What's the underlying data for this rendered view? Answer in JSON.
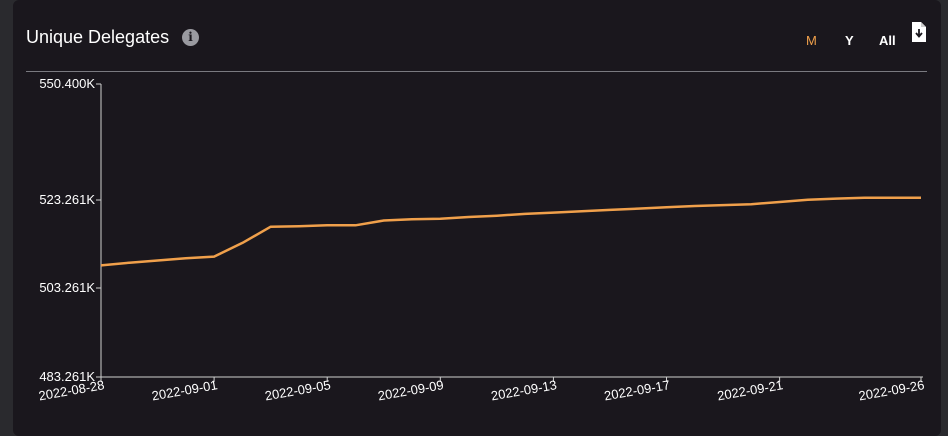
{
  "header": {
    "title": "Unique Delegates",
    "info_icon": "info-icon",
    "download_icon": "download-file-icon"
  },
  "range_buttons": [
    {
      "label": "M",
      "active": true
    },
    {
      "label": "Y",
      "active": false
    },
    {
      "label": "All",
      "active": false
    }
  ],
  "colors": {
    "series": "#f0a04b",
    "active_button": "#f0a04b",
    "background": "#1a171d"
  },
  "chart_data": {
    "type": "line",
    "title": "Unique Delegates",
    "xlabel": "",
    "ylabel": "",
    "grid": false,
    "y_ticks": [
      "550.400K",
      "523.261K",
      "503.261K",
      "483.261K"
    ],
    "y_tick_values": [
      550400,
      523261,
      503261,
      483261
    ],
    "ylim": [
      483261,
      550400
    ],
    "x_ticks": [
      "2022-08-28",
      "2022-09-01",
      "2022-09-05",
      "2022-09-09",
      "2022-09-13",
      "2022-09-17",
      "2022-09-21",
      "2022-09-26"
    ],
    "series": [
      {
        "values": [
          {
            "x": "2022-08-28",
            "y": 508400
          },
          {
            "x": "2022-08-29",
            "y": 509000
          },
          {
            "x": "2022-08-30",
            "y": 509500
          },
          {
            "x": "2022-08-31",
            "y": 510000
          },
          {
            "x": "2022-09-01",
            "y": 510400
          },
          {
            "x": "2022-09-02",
            "y": 513500
          },
          {
            "x": "2022-09-03",
            "y": 517200
          },
          {
            "x": "2022-09-04",
            "y": 517300
          },
          {
            "x": "2022-09-05",
            "y": 517500
          },
          {
            "x": "2022-09-06",
            "y": 517500
          },
          {
            "x": "2022-09-07",
            "y": 518600
          },
          {
            "x": "2022-09-08",
            "y": 518900
          },
          {
            "x": "2022-09-09",
            "y": 519000
          },
          {
            "x": "2022-09-10",
            "y": 519400
          },
          {
            "x": "2022-09-11",
            "y": 519700
          },
          {
            "x": "2022-09-12",
            "y": 520100
          },
          {
            "x": "2022-09-13",
            "y": 520400
          },
          {
            "x": "2022-09-14",
            "y": 520700
          },
          {
            "x": "2022-09-15",
            "y": 521000
          },
          {
            "x": "2022-09-16",
            "y": 521300
          },
          {
            "x": "2022-09-17",
            "y": 521600
          },
          {
            "x": "2022-09-18",
            "y": 521900
          },
          {
            "x": "2022-09-19",
            "y": 522100
          },
          {
            "x": "2022-09-20",
            "y": 522300
          },
          {
            "x": "2022-09-21",
            "y": 522800
          },
          {
            "x": "2022-09-22",
            "y": 523300
          },
          {
            "x": "2022-09-23",
            "y": 523600
          },
          {
            "x": "2022-09-24",
            "y": 523800
          },
          {
            "x": "2022-09-25",
            "y": 523800
          },
          {
            "x": "2022-09-26",
            "y": 523800
          }
        ]
      }
    ]
  }
}
